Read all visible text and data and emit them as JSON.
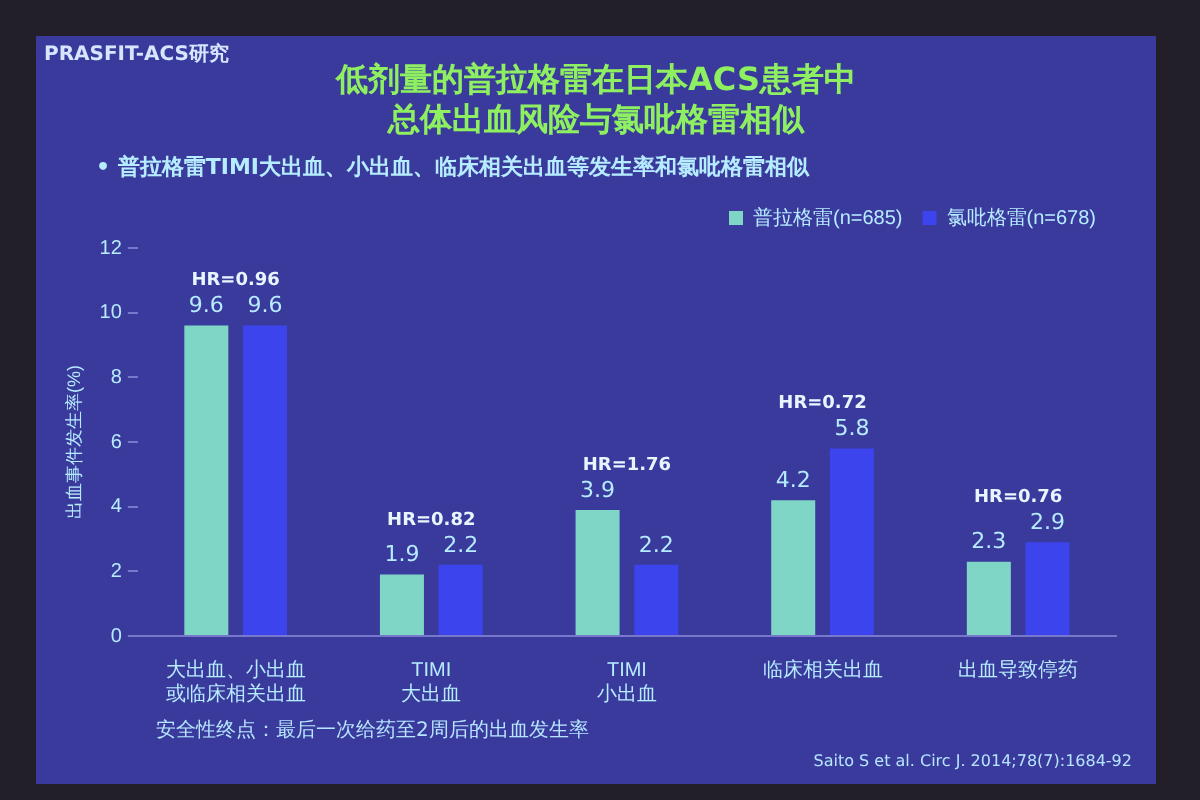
{
  "chart_data": {
    "type": "bar",
    "title": "低剂量的普拉格雷在日本ACS患者中总体出血风险与氯吡格雷相似",
    "subtitle": "•  普拉格雷TIMI大出血、小出血、临床相关出血等发生率和氯吡格雷相似",
    "ylabel": "出血事件发生率(%)",
    "categories": [
      "大出血、小出血或临床相关出血",
      "TIMI大出血",
      "TIMI小出血",
      "临床相关出血",
      "出血导致停药"
    ],
    "series": [
      {
        "name": "普拉格雷(n=685)",
        "color": "#7fd6c6",
        "values": [
          9.6,
          1.9,
          3.9,
          4.2,
          2.3
        ]
      },
      {
        "name": "氯吡格雷(n=678)",
        "color": "#3c44ee",
        "values": [
          9.6,
          2.2,
          2.2,
          5.8,
          2.9
        ]
      }
    ],
    "ylim": [
      0,
      12
    ],
    "yticks": [
      0,
      2,
      4,
      6,
      8,
      10,
      12
    ],
    "grid": false,
    "legend": "top right",
    "data_labels": true,
    "annotations": [
      "PRASFIT-ACS研究",
      "HR=0.96",
      "HR=0.82",
      "HR=1.76",
      "HR=0.72",
      "HR=0.76",
      "安全性终点：最后一次给药至2周后的出血发生率",
      "Saito S et al. Circ J. 2014;78(7):1684-92"
    ]
  }
}
